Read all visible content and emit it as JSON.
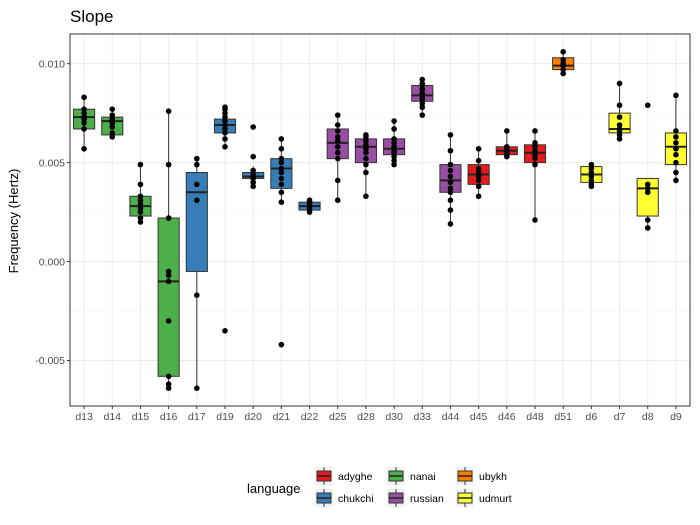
{
  "chart_data": {
    "type": "boxplot",
    "title": "Slope",
    "xlabel": "",
    "ylabel": "Frequency (Hertz)",
    "ylim": [
      -0.0073,
      0.0115
    ],
    "yticks": [
      -0.005,
      0.0,
      0.005,
      0.01
    ],
    "ytick_labels": [
      "-0.005",
      "0.000",
      "0.005",
      "0.010"
    ],
    "grid": true,
    "legend": {
      "title": "language",
      "position": "bottom"
    },
    "groups": [
      {
        "name": "adyghe",
        "color": "#E41A1C"
      },
      {
        "name": "chukchi",
        "color": "#377EB8"
      },
      {
        "name": "nanai",
        "color": "#4DAF4A"
      },
      {
        "name": "russian",
        "color": "#984EA3"
      },
      {
        "name": "ubykh",
        "color": "#FF7F00"
      },
      {
        "name": "udmurt",
        "color": "#FFFF33"
      }
    ],
    "categories": [
      "d13",
      "d14",
      "d15",
      "d16",
      "d17",
      "d19",
      "d20",
      "d21",
      "d22",
      "d25",
      "d28",
      "d30",
      "d33",
      "d44",
      "d45",
      "d46",
      "d48",
      "d51",
      "d6",
      "d7",
      "d8",
      "d9"
    ],
    "boxes": [
      {
        "category": "d13",
        "group": "nanai",
        "q1": 0.0067,
        "median": 0.0073,
        "q3": 0.0077,
        "whisker_low": 0.0057,
        "whisker_high": 0.0083,
        "points": [
          0.0083,
          0.0077,
          0.0075,
          0.0073,
          0.0072,
          0.007,
          0.0067,
          0.0057
        ]
      },
      {
        "category": "d14",
        "group": "nanai",
        "q1": 0.0064,
        "median": 0.0071,
        "q3": 0.0073,
        "whisker_low": 0.0063,
        "whisker_high": 0.0077,
        "points": [
          0.0077,
          0.0074,
          0.0072,
          0.0071,
          0.007,
          0.0068,
          0.0065,
          0.0063
        ]
      },
      {
        "category": "d15",
        "group": "nanai",
        "q1": 0.0023,
        "median": 0.0028,
        "q3": 0.0033,
        "whisker_low": 0.002,
        "whisker_high": 0.0049,
        "points": [
          0.0049,
          0.0039,
          0.0033,
          0.0031,
          0.0029,
          0.0027,
          0.0025,
          0.0022,
          0.002
        ]
      },
      {
        "category": "d16",
        "group": "nanai",
        "q1": -0.0058,
        "median": -0.001,
        "q3": 0.0022,
        "whisker_low": -0.0064,
        "whisker_high": 0.0076,
        "points": [
          0.0076,
          0.0049,
          0.0022,
          -0.0005,
          -0.0007,
          -0.001,
          -0.003,
          -0.0058,
          -0.0062,
          -0.0064
        ]
      },
      {
        "category": "d17",
        "group": "chukchi",
        "q1": -0.0005,
        "median": 0.0035,
        "q3": 0.0045,
        "whisker_low": -0.0064,
        "whisker_high": 0.0052,
        "points": [
          0.0052,
          0.0049,
          0.0039,
          0.0031,
          -0.0017,
          -0.0064
        ]
      },
      {
        "category": "d19",
        "group": "chukchi",
        "q1": 0.0065,
        "median": 0.0069,
        "q3": 0.0072,
        "whisker_low": 0.0058,
        "whisker_high": 0.0078,
        "points": [
          0.0078,
          0.0077,
          0.0075,
          0.0073,
          0.0071,
          0.0069,
          0.0067,
          0.0065,
          0.0062,
          0.0058,
          -0.0035
        ]
      },
      {
        "category": "d20",
        "group": "chukchi",
        "q1": 0.0042,
        "median": 0.0043,
        "q3": 0.0045,
        "whisker_low": 0.0038,
        "whisker_high": 0.0048,
        "points": [
          0.0068,
          0.0053,
          0.0046,
          0.0044,
          0.0043,
          0.0042,
          0.004,
          0.0038
        ]
      },
      {
        "category": "d21",
        "group": "chukchi",
        "q1": 0.0037,
        "median": 0.0047,
        "q3": 0.0052,
        "whisker_low": 0.003,
        "whisker_high": 0.0062,
        "points": [
          0.0062,
          0.0057,
          0.0052,
          0.005,
          0.0047,
          0.0045,
          0.0042,
          0.0039,
          0.0035,
          0.003,
          -0.0042
        ]
      },
      {
        "category": "d22",
        "group": "chukchi",
        "q1": 0.0026,
        "median": 0.0028,
        "q3": 0.003,
        "whisker_low": 0.0025,
        "whisker_high": 0.0031,
        "points": [
          0.0031,
          0.003,
          0.0029,
          0.0028,
          0.0027,
          0.0026,
          0.0025
        ]
      },
      {
        "category": "d25",
        "group": "russian",
        "q1": 0.0052,
        "median": 0.006,
        "q3": 0.0067,
        "whisker_low": 0.0031,
        "whisker_high": 0.0074,
        "points": [
          0.0074,
          0.0069,
          0.0066,
          0.0063,
          0.0061,
          0.0058,
          0.0055,
          0.0052,
          0.0041,
          0.0031
        ]
      },
      {
        "category": "d28",
        "group": "russian",
        "q1": 0.005,
        "median": 0.0058,
        "q3": 0.0062,
        "whisker_low": 0.0033,
        "whisker_high": 0.0064,
        "points": [
          0.0064,
          0.0063,
          0.0061,
          0.0059,
          0.0057,
          0.0055,
          0.0052,
          0.0049,
          0.0045,
          0.0033
        ]
      },
      {
        "category": "d30",
        "group": "russian",
        "q1": 0.0054,
        "median": 0.0057,
        "q3": 0.0062,
        "whisker_low": 0.0049,
        "whisker_high": 0.0071,
        "points": [
          0.0071,
          0.0067,
          0.0062,
          0.006,
          0.0058,
          0.0056,
          0.0055,
          0.0053,
          0.0051,
          0.0049
        ]
      },
      {
        "category": "d33",
        "group": "russian",
        "q1": 0.0081,
        "median": 0.0084,
        "q3": 0.0089,
        "whisker_low": 0.0074,
        "whisker_high": 0.0092,
        "points": [
          0.0092,
          0.009,
          0.0089,
          0.0087,
          0.0085,
          0.0083,
          0.0082,
          0.008,
          0.0078,
          0.0074
        ]
      },
      {
        "category": "d44",
        "group": "russian",
        "q1": 0.0035,
        "median": 0.0041,
        "q3": 0.0049,
        "whisker_low": 0.0019,
        "whisker_high": 0.0064,
        "points": [
          0.0064,
          0.0056,
          0.0049,
          0.0046,
          0.0043,
          0.004,
          0.0037,
          0.0035,
          0.0031,
          0.0026,
          0.0019
        ]
      },
      {
        "category": "d45",
        "group": "adyghe",
        "q1": 0.0039,
        "median": 0.0044,
        "q3": 0.0049,
        "whisker_low": 0.0033,
        "whisker_high": 0.0057,
        "points": [
          0.0057,
          0.0051,
          0.0047,
          0.0045,
          0.0043,
          0.0041,
          0.0038,
          0.0033
        ]
      },
      {
        "category": "d46",
        "group": "adyghe",
        "q1": 0.0054,
        "median": 0.0056,
        "q3": 0.0058,
        "whisker_low": 0.0053,
        "whisker_high": 0.0066,
        "points": [
          0.0066,
          0.0058,
          0.0057,
          0.0056,
          0.0055,
          0.0054,
          0.0053
        ]
      },
      {
        "category": "d48",
        "group": "adyghe",
        "q1": 0.005,
        "median": 0.0055,
        "q3": 0.0059,
        "whisker_low": 0.0021,
        "whisker_high": 0.0066,
        "points": [
          0.0066,
          0.006,
          0.0058,
          0.0056,
          0.0054,
          0.0052,
          0.0049,
          0.0021
        ]
      },
      {
        "category": "d51",
        "group": "ubykh",
        "q1": 0.0097,
        "median": 0.0099,
        "q3": 0.0103,
        "whisker_low": 0.0095,
        "whisker_high": 0.0106,
        "points": [
          0.0106,
          0.0102,
          0.01,
          0.0099,
          0.0097,
          0.0095
        ]
      },
      {
        "category": "d6",
        "group": "udmurt",
        "q1": 0.004,
        "median": 0.0044,
        "q3": 0.0048,
        "whisker_low": 0.0038,
        "whisker_high": 0.0049,
        "points": [
          0.0049,
          0.0047,
          0.0045,
          0.0043,
          0.0041,
          0.0039,
          0.0038
        ]
      },
      {
        "category": "d7",
        "group": "udmurt",
        "q1": 0.0065,
        "median": 0.0067,
        "q3": 0.0075,
        "whisker_low": 0.0062,
        "whisker_high": 0.009,
        "points": [
          0.009,
          0.0079,
          0.0073,
          0.0069,
          0.0067,
          0.0066,
          0.0064,
          0.0062
        ]
      },
      {
        "category": "d8",
        "group": "udmurt",
        "q1": 0.0023,
        "median": 0.0037,
        "q3": 0.0042,
        "whisker_low": 0.0017,
        "whisker_high": 0.0042,
        "points": [
          0.0079,
          0.0039,
          0.0037,
          0.0035,
          0.0021,
          0.0017
        ]
      },
      {
        "category": "d9",
        "group": "udmurt",
        "q1": 0.0049,
        "median": 0.0058,
        "q3": 0.0065,
        "whisker_low": 0.0041,
        "whisker_high": 0.0084,
        "points": [
          0.0084,
          0.0066,
          0.0063,
          0.006,
          0.0057,
          0.0054,
          0.005,
          0.0045,
          0.0041
        ]
      }
    ]
  }
}
